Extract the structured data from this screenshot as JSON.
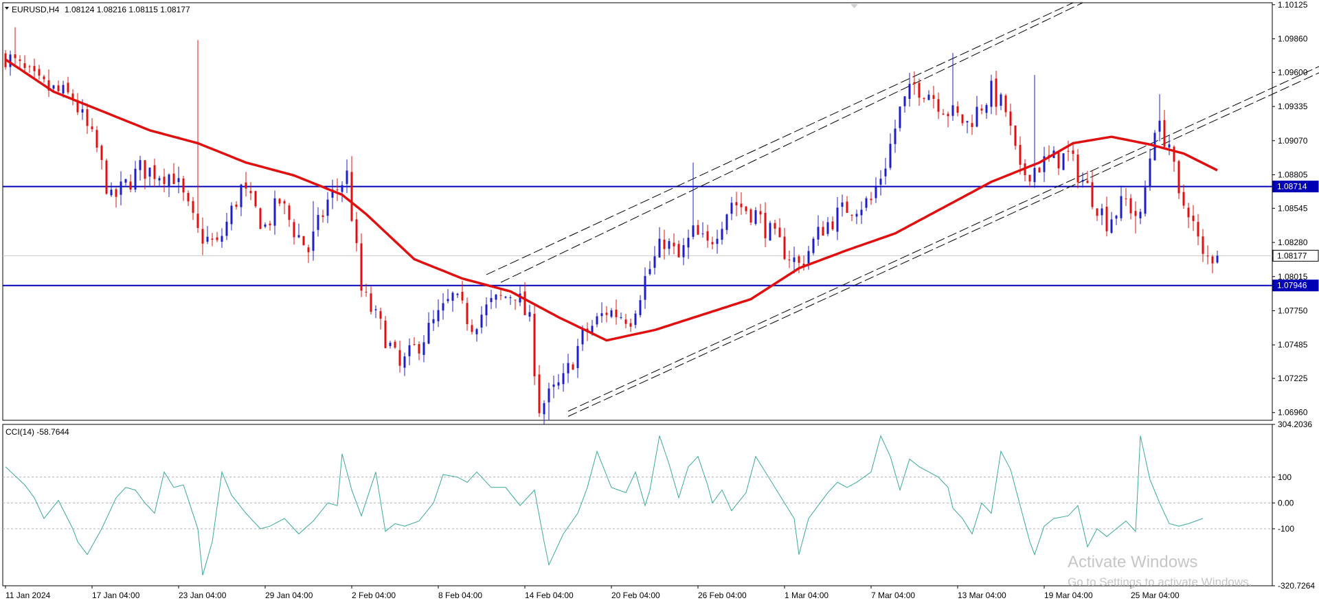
{
  "header": {
    "symbol": "EURUSD,H4",
    "ohlc": "1.08124 1.08216 1.08115 1.08177"
  },
  "indicator": {
    "label": "CCI(14) -58.7644"
  },
  "watermark": {
    "title": "Activate Windows",
    "subtitle": "Go to Settings to activate Windows."
  },
  "colors": {
    "bull": "#1e1ec8",
    "bear": "#e01010",
    "ma": "#e01010",
    "hline": "#0000b4",
    "cci": "#3aaa9a",
    "grid": "#c8c8c8",
    "channel": "#000000"
  },
  "chart_data": [
    {
      "type": "candlestick",
      "title": "EURUSD,H4",
      "yticks": [
        "1.10125",
        "1.09860",
        "1.09600",
        "1.09335",
        "1.09070",
        "1.08805",
        "1.08545",
        "1.08280",
        "1.08015",
        "1.07750",
        "1.07485",
        "1.07225",
        "1.06960"
      ],
      "ylim": [
        1.069,
        1.1014
      ],
      "xticks": [
        "11 Jan 2024",
        "17 Jan 04:00",
        "23 Jan 04:00",
        "29 Jan 04:00",
        "2 Feb 04:00",
        "8 Feb 04:00",
        "14 Feb 04:00",
        "20 Feb 04:00",
        "26 Feb 04:00",
        "1 Mar 04:00",
        "7 Mar 04:00",
        "13 Mar 04:00",
        "19 Mar 04:00",
        "25 Mar 04:00"
      ],
      "price_tags": [
        {
          "label": "1.08714",
          "value": 1.08714,
          "style": "blue"
        },
        {
          "label": "1.08177",
          "value": 1.08177,
          "style": "current"
        },
        {
          "label": "1.07946",
          "value": 1.07946,
          "style": "blue"
        }
      ],
      "horizontal_levels": [
        1.08714,
        1.07946
      ],
      "close_path": [
        [
          0,
          1.0973
        ],
        [
          7,
          1.095
        ],
        [
          14,
          1.094
        ],
        [
          19,
          1.09
        ],
        [
          22,
          1.086
        ],
        [
          28,
          1.0885
        ],
        [
          35,
          1.088
        ],
        [
          40,
          1.0835
        ],
        [
          44,
          1.0825
        ],
        [
          49,
          1.087
        ],
        [
          54,
          1.084
        ],
        [
          57,
          1.086
        ],
        [
          60,
          1.0838
        ],
        [
          63,
          1.0822
        ],
        [
          67,
          1.086
        ],
        [
          71,
          1.088
        ],
        [
          74,
          1.079
        ],
        [
          79,
          1.0755
        ],
        [
          82,
          1.073
        ],
        [
          88,
          1.076
        ],
        [
          93,
          1.0785
        ],
        [
          97,
          1.0765
        ],
        [
          101,
          1.078
        ],
        [
          106,
          1.079
        ],
        [
          109,
          1.0765
        ],
        [
          111,
          1.07
        ],
        [
          116,
          1.072
        ],
        [
          120,
          1.0755
        ],
        [
          125,
          1.0775
        ],
        [
          130,
          1.077
        ],
        [
          133,
          1.08
        ],
        [
          137,
          1.083
        ],
        [
          140,
          1.0815
        ],
        [
          143,
          1.0835
        ],
        [
          146,
          1.0825
        ],
        [
          151,
          1.086
        ],
        [
          156,
          1.085
        ],
        [
          160,
          1.083
        ],
        [
          165,
          1.081
        ],
        [
          170,
          1.084
        ],
        [
          175,
          1.0855
        ],
        [
          180,
          1.086
        ],
        [
          183,
          1.089
        ],
        [
          186,
          1.093
        ],
        [
          189,
          1.095
        ],
        [
          192,
          1.0945
        ],
        [
          196,
          1.093
        ],
        [
          200,
          1.092
        ],
        [
          205,
          1.0945
        ],
        [
          208,
          1.093
        ],
        [
          211,
          1.088
        ],
        [
          216,
          1.089
        ],
        [
          221,
          1.0895
        ],
        [
          225,
          1.087
        ],
        [
          229,
          1.0845
        ],
        [
          233,
          1.086
        ],
        [
          236,
          1.0845
        ],
        [
          239,
          1.092
        ],
        [
          242,
          1.0905
        ],
        [
          244,
          1.086
        ],
        [
          246,
          1.0855
        ],
        [
          249,
          1.0815
        ],
        [
          252,
          1.0818
        ]
      ],
      "spikes": [
        [
          2,
          1.0995
        ],
        [
          40,
          1.0985
        ],
        [
          50,
          1.088
        ],
        [
          64,
          1.086
        ],
        [
          72,
          1.0895
        ],
        [
          113,
          1.069
        ],
        [
          143,
          1.089
        ],
        [
          165,
          1.081
        ],
        [
          197,
          1.0975
        ],
        [
          214,
          1.0958
        ],
        [
          235,
          1.0835
        ],
        [
          240,
          1.0943
        ]
      ],
      "moving_average": [
        [
          0,
          1.097
        ],
        [
          10,
          1.0945
        ],
        [
          20,
          1.093
        ],
        [
          30,
          1.0915
        ],
        [
          40,
          1.0905
        ],
        [
          50,
          1.089
        ],
        [
          60,
          1.088
        ],
        [
          70,
          1.0865
        ],
        [
          75,
          1.085
        ],
        [
          85,
          1.0815
        ],
        [
          95,
          1.08
        ],
        [
          105,
          1.079
        ],
        [
          115,
          1.077
        ],
        [
          125,
          1.0752
        ],
        [
          135,
          1.076
        ],
        [
          145,
          1.0772
        ],
        [
          155,
          1.0784
        ],
        [
          165,
          1.0808
        ],
        [
          175,
          1.0822
        ],
        [
          185,
          1.0835
        ],
        [
          195,
          1.0855
        ],
        [
          205,
          1.0875
        ],
        [
          215,
          1.089
        ],
        [
          222,
          1.0905
        ],
        [
          230,
          1.091
        ],
        [
          238,
          1.0904
        ],
        [
          245,
          1.0897
        ],
        [
          252,
          1.0884
        ]
      ],
      "channel_lines": [
        {
          "from": [
            100,
            1.0803
          ],
          "to": [
            222,
            1.1014
          ],
          "dash": "long"
        },
        {
          "from": [
            103,
            1.0797
          ],
          "to": [
            224,
            1.1014
          ],
          "dash": "long"
        },
        {
          "from": [
            117,
            1.0693
          ],
          "to": [
            305,
            1.1014
          ],
          "dash": "long"
        },
        {
          "from": [
            117,
            1.0697
          ],
          "to": [
            302,
            1.1014
          ],
          "dash": "long"
        }
      ],
      "last_bar": {
        "open": 1.08124,
        "high": 1.08216,
        "low": 1.08115,
        "close": 1.08177
      }
    },
    {
      "type": "line",
      "title": "CCI(14) -58.7644",
      "yticks": [
        "304.2036",
        "100",
        "0.00",
        "-100",
        "-320.7264"
      ],
      "ylim": [
        -320.7264,
        304.2036
      ],
      "levels": [
        100,
        0,
        -100
      ],
      "values_path": [
        [
          0,
          140
        ],
        [
          4,
          70
        ],
        [
          6,
          20
        ],
        [
          8,
          -60
        ],
        [
          11,
          10
        ],
        [
          14,
          -100
        ],
        [
          15,
          -150
        ],
        [
          17,
          -200
        ],
        [
          20,
          -100
        ],
        [
          23,
          20
        ],
        [
          25,
          60
        ],
        [
          27,
          50
        ],
        [
          29,
          0
        ],
        [
          31,
          -40
        ],
        [
          33,
          120
        ],
        [
          35,
          60
        ],
        [
          37,
          70
        ],
        [
          40,
          -100
        ],
        [
          41,
          -280
        ],
        [
          43,
          -150
        ],
        [
          45,
          120
        ],
        [
          47,
          30
        ],
        [
          50,
          -40
        ],
        [
          53,
          -100
        ],
        [
          55,
          -90
        ],
        [
          58,
          -60
        ],
        [
          61,
          -120
        ],
        [
          64,
          -70
        ],
        [
          67,
          0
        ],
        [
          69,
          -10
        ],
        [
          70,
          190
        ],
        [
          72,
          50
        ],
        [
          74,
          -50
        ],
        [
          77,
          120
        ],
        [
          79,
          -110
        ],
        [
          81,
          -80
        ],
        [
          83,
          -90
        ],
        [
          86,
          -70
        ],
        [
          89,
          0
        ],
        [
          91,
          110
        ],
        [
          94,
          100
        ],
        [
          96,
          80
        ],
        [
          98,
          120
        ],
        [
          101,
          60
        ],
        [
          104,
          60
        ],
        [
          107,
          -10
        ],
        [
          110,
          50
        ],
        [
          112,
          -150
        ],
        [
          113,
          -240
        ],
        [
          116,
          -120
        ],
        [
          119,
          -40
        ],
        [
          121,
          60
        ],
        [
          123,
          200
        ],
        [
          126,
          60
        ],
        [
          129,
          40
        ],
        [
          131,
          120
        ],
        [
          133,
          -10
        ],
        [
          134,
          50
        ],
        [
          136,
          260
        ],
        [
          138,
          150
        ],
        [
          140,
          20
        ],
        [
          142,
          140
        ],
        [
          144,
          180
        ],
        [
          146,
          70
        ],
        [
          147,
          0
        ],
        [
          149,
          50
        ],
        [
          151,
          -30
        ],
        [
          154,
          40
        ],
        [
          156,
          180
        ],
        [
          159,
          90
        ],
        [
          162,
          0
        ],
        [
          164,
          -60
        ],
        [
          165,
          -200
        ],
        [
          167,
          -60
        ],
        [
          169,
          -10
        ],
        [
          171,
          40
        ],
        [
          173,
          80
        ],
        [
          175,
          60
        ],
        [
          177,
          80
        ],
        [
          180,
          120
        ],
        [
          182,
          260
        ],
        [
          184,
          180
        ],
        [
          186,
          50
        ],
        [
          188,
          170
        ],
        [
          190,
          140
        ],
        [
          192,
          120
        ],
        [
          194,
          100
        ],
        [
          196,
          60
        ],
        [
          197,
          -20
        ],
        [
          199,
          -60
        ],
        [
          201,
          -120
        ],
        [
          203,
          0
        ],
        [
          205,
          -40
        ],
        [
          207,
          200
        ],
        [
          209,
          130
        ],
        [
          211,
          -10
        ],
        [
          213,
          -150
        ],
        [
          214,
          -200
        ],
        [
          216,
          -90
        ],
        [
          218,
          -60
        ],
        [
          221,
          -50
        ],
        [
          223,
          -10
        ],
        [
          225,
          -170
        ],
        [
          227,
          -100
        ],
        [
          229,
          -130
        ],
        [
          231,
          -100
        ],
        [
          233,
          -70
        ],
        [
          235,
          -110
        ],
        [
          236,
          260
        ],
        [
          238,
          90
        ],
        [
          240,
          0
        ],
        [
          242,
          -80
        ],
        [
          244,
          -90
        ],
        [
          246,
          -80
        ],
        [
          249,
          -60
        ]
      ]
    }
  ]
}
